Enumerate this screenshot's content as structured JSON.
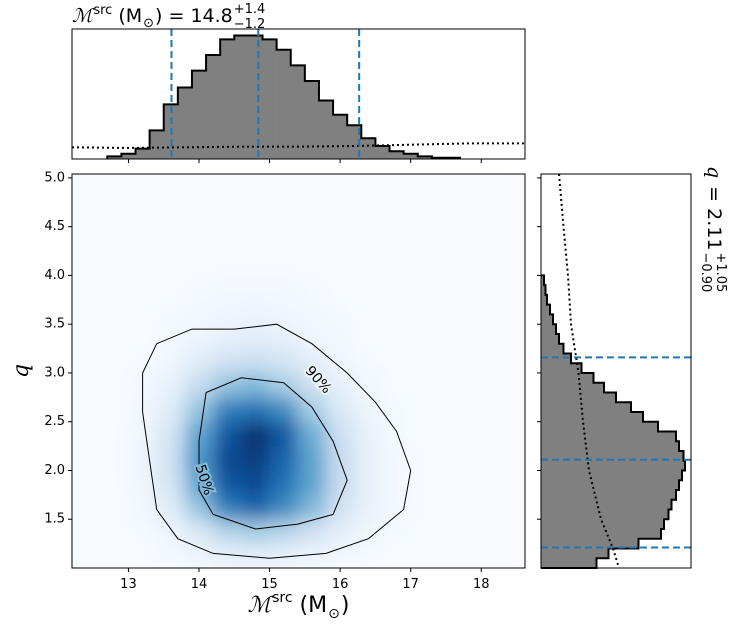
{
  "chart_data": [
    {
      "type": "heatmap",
      "colormap": "Blues",
      "xlabel": {
        "symbol": "ℳ",
        "sup": "src",
        "unit": "(M",
        "unit_sub": "⊙",
        "close": ")"
      },
      "ylabel": "q",
      "xlim": [
        12.2,
        18.62
      ],
      "ylim": [
        1.0,
        5.04
      ],
      "xticks": [
        13,
        14,
        15,
        16,
        17,
        18
      ],
      "yticks": [
        1.5,
        {
          "value": 2,
          "label": "2.0"
        },
        2.5,
        {
          "value": 3,
          "label": "3.0"
        },
        3.5,
        {
          "value": 4,
          "label": "4.0"
        },
        4.5,
        {
          "value": 5,
          "label": "5.0"
        }
      ],
      "xbins": [
        12.6,
        13.0,
        13.4,
        13.8,
        14.2,
        14.6,
        15.0,
        15.4,
        15.8,
        16.2,
        16.6,
        17.0,
        17.4
      ],
      "ybins": [
        1.0,
        1.25,
        1.5,
        1.75,
        2.0,
        2.25,
        2.5,
        2.75,
        3.0,
        3.25,
        3.5,
        3.75,
        4.0
      ],
      "values": [
        [
          0,
          0,
          0.02,
          0.05,
          0.08,
          0.1,
          0.08,
          0.05,
          0.03,
          0.01,
          0,
          0
        ],
        [
          0,
          0.01,
          0.05,
          0.15,
          0.3,
          0.35,
          0.3,
          0.2,
          0.1,
          0.04,
          0.01,
          0
        ],
        [
          0,
          0.03,
          0.12,
          0.4,
          0.7,
          0.8,
          0.65,
          0.45,
          0.2,
          0.07,
          0.02,
          0
        ],
        [
          0,
          0.04,
          0.18,
          0.55,
          0.85,
          0.9,
          0.75,
          0.55,
          0.25,
          0.08,
          0.02,
          0
        ],
        [
          0,
          0.05,
          0.2,
          0.6,
          0.9,
          0.95,
          0.8,
          0.55,
          0.25,
          0.08,
          0.02,
          0
        ],
        [
          0,
          0.04,
          0.18,
          0.55,
          0.85,
          1.0,
          0.85,
          0.5,
          0.22,
          0.07,
          0.01,
          0
        ],
        [
          0,
          0.03,
          0.12,
          0.4,
          0.7,
          0.75,
          0.65,
          0.35,
          0.15,
          0.05,
          0.01,
          0
        ],
        [
          0,
          0.02,
          0.08,
          0.25,
          0.4,
          0.45,
          0.35,
          0.2,
          0.08,
          0.03,
          0,
          0
        ],
        [
          0,
          0.01,
          0.04,
          0.12,
          0.2,
          0.22,
          0.18,
          0.1,
          0.04,
          0.01,
          0,
          0
        ],
        [
          0,
          0,
          0.02,
          0.05,
          0.08,
          0.1,
          0.08,
          0.04,
          0.02,
          0,
          0,
          0
        ],
        [
          0,
          0,
          0.01,
          0.02,
          0.04,
          0.05,
          0.04,
          0.02,
          0.01,
          0,
          0,
          0
        ],
        [
          0,
          0,
          0,
          0.01,
          0.02,
          0.02,
          0.02,
          0.01,
          0,
          0,
          0,
          0
        ]
      ],
      "contours": [
        {
          "label": "90%",
          "x": [
            13.4,
            13.9,
            14.5,
            15.1,
            15.6,
            16.1,
            16.5,
            16.8,
            17.0,
            16.9,
            16.4,
            15.8,
            15.0,
            14.2,
            13.7,
            13.4,
            13.3,
            13.2,
            13.2,
            13.4
          ],
          "y": [
            3.3,
            3.45,
            3.45,
            3.5,
            3.3,
            3.0,
            2.7,
            2.4,
            2.0,
            1.6,
            1.3,
            1.15,
            1.1,
            1.15,
            1.3,
            1.6,
            2.1,
            2.6,
            3.0,
            3.3
          ]
        },
        {
          "label": "50%",
          "x": [
            14.1,
            14.6,
            15.2,
            15.6,
            15.9,
            16.1,
            15.9,
            15.4,
            14.8,
            14.2,
            14.0,
            14.0,
            14.1
          ],
          "y": [
            2.8,
            2.95,
            2.9,
            2.65,
            2.3,
            1.9,
            1.55,
            1.45,
            1.4,
            1.55,
            1.8,
            2.3,
            2.8
          ]
        }
      ]
    },
    {
      "type": "histogram",
      "color": "#808080",
      "edgecolor": "#000000",
      "title": {
        "symbol": "ℳ",
        "sup": "src",
        "unit": "(M",
        "unit_sub": "⊙",
        "rest": ") = 14.8",
        "plus": "+1.4",
        "minus": "−1.2"
      },
      "ylim": [
        0,
        1
      ],
      "bins": [
        12.7,
        12.9,
        13.1,
        13.3,
        13.5,
        13.7,
        13.9,
        14.1,
        14.3,
        14.5,
        14.7,
        14.9,
        15.1,
        15.3,
        15.5,
        15.7,
        15.9,
        16.1,
        16.3,
        16.5,
        16.7,
        16.9,
        17.1,
        17.3,
        17.5,
        17.7
      ],
      "values": [
        0.02,
        0.04,
        0.08,
        0.22,
        0.42,
        0.55,
        0.68,
        0.8,
        0.92,
        0.95,
        0.95,
        0.92,
        0.84,
        0.72,
        0.6,
        0.45,
        0.34,
        0.26,
        0.16,
        0.1,
        0.06,
        0.04,
        0.02,
        0.01,
        0.01
      ],
      "prior": {
        "x": [
          12.2,
          13.0,
          13.8,
          14.6,
          15.4,
          16.2,
          17.0,
          17.8,
          18.62
        ],
        "values": [
          0.09,
          0.085,
          0.09,
          0.095,
          0.095,
          0.1,
          0.11,
          0.12,
          0.12
        ]
      },
      "lines": {
        "color": "#1f77b4",
        "values": [
          13.61,
          14.84,
          16.27
        ]
      }
    },
    {
      "type": "histogram",
      "orientation": "horizontal",
      "color": "#808080",
      "edgecolor": "#000000",
      "title": {
        "symbol": "q",
        "rest": "= 2.11",
        "plus": "+1.05",
        "minus": "−0.90"
      },
      "xlim": [
        0,
        1
      ],
      "bins": [
        1.0,
        1.1,
        1.2,
        1.3,
        1.4,
        1.5,
        1.6,
        1.7,
        1.8,
        1.9,
        2.0,
        2.1,
        2.2,
        2.3,
        2.4,
        2.5,
        2.6,
        2.7,
        2.8,
        2.9,
        3.0,
        3.1,
        3.2,
        3.3,
        3.4,
        3.5,
        3.6,
        3.7,
        3.8,
        3.9,
        4.0
      ],
      "values": [
        0.37,
        0.45,
        0.65,
        0.8,
        0.82,
        0.85,
        0.87,
        0.9,
        0.92,
        0.94,
        0.96,
        0.95,
        0.92,
        0.9,
        0.78,
        0.68,
        0.6,
        0.5,
        0.42,
        0.35,
        0.27,
        0.2,
        0.15,
        0.12,
        0.1,
        0.08,
        0.06,
        0.04,
        0.03,
        0.02
      ],
      "prior": {
        "y": [
          5.04,
          4.5,
          4.0,
          3.5,
          3.0,
          2.5,
          2.0,
          1.5,
          1.2,
          1.0
        ],
        "values": [
          0.12,
          0.15,
          0.18,
          0.2,
          0.25,
          0.28,
          0.32,
          0.4,
          0.48,
          0.52
        ]
      },
      "lines": {
        "color": "#1f77b4",
        "values": [
          1.21,
          2.11,
          3.16
        ]
      }
    }
  ]
}
